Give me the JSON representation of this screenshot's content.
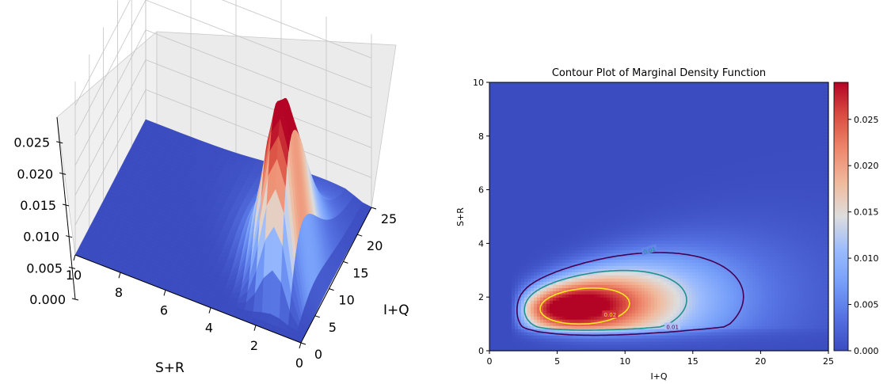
{
  "chart_data": [
    {
      "type": "surface3d",
      "title": "",
      "xlabel": "I+Q",
      "ylabel": "S+R",
      "zlabel": "",
      "xlim": [
        0,
        25
      ],
      "ylim": [
        0,
        10
      ],
      "zlim": [
        0,
        0.029
      ],
      "x_ticks": [
        0,
        5,
        10,
        15,
        20,
        25
      ],
      "y_ticks": [
        0,
        2,
        4,
        6,
        8,
        10
      ],
      "z_ticks": [
        "0.000",
        "0.005",
        "0.010",
        "0.015",
        "0.020",
        "0.025"
      ],
      "colormap": "coolwarm",
      "peak": {
        "x": 9.0,
        "y": 1.55,
        "z": 0.029
      }
    },
    {
      "type": "heatmap",
      "title": "Contour Plot of Marginal Density Function",
      "xlabel": "I+Q",
      "ylabel": "S+R",
      "xlim": [
        0,
        25
      ],
      "ylim": [
        0,
        10
      ],
      "x_ticks": [
        0,
        5,
        10,
        15,
        20,
        25
      ],
      "y_ticks": [
        0,
        2,
        4,
        6,
        8,
        10
      ],
      "colormap": "coolwarm",
      "colorbar_range": [
        0,
        0.029
      ],
      "colorbar_ticks": [
        "0.000",
        "0.005",
        "0.010",
        "0.015",
        "0.020",
        "0.025"
      ],
      "contour_levels": [
        {
          "level": "0.01",
          "color": "#440154"
        },
        {
          "level": "0.01",
          "color": "#21918c"
        },
        {
          "level": "0.02",
          "color": "#fde725"
        }
      ],
      "peak": {
        "x": 9.0,
        "y": 1.55,
        "z": 0.029
      }
    }
  ]
}
